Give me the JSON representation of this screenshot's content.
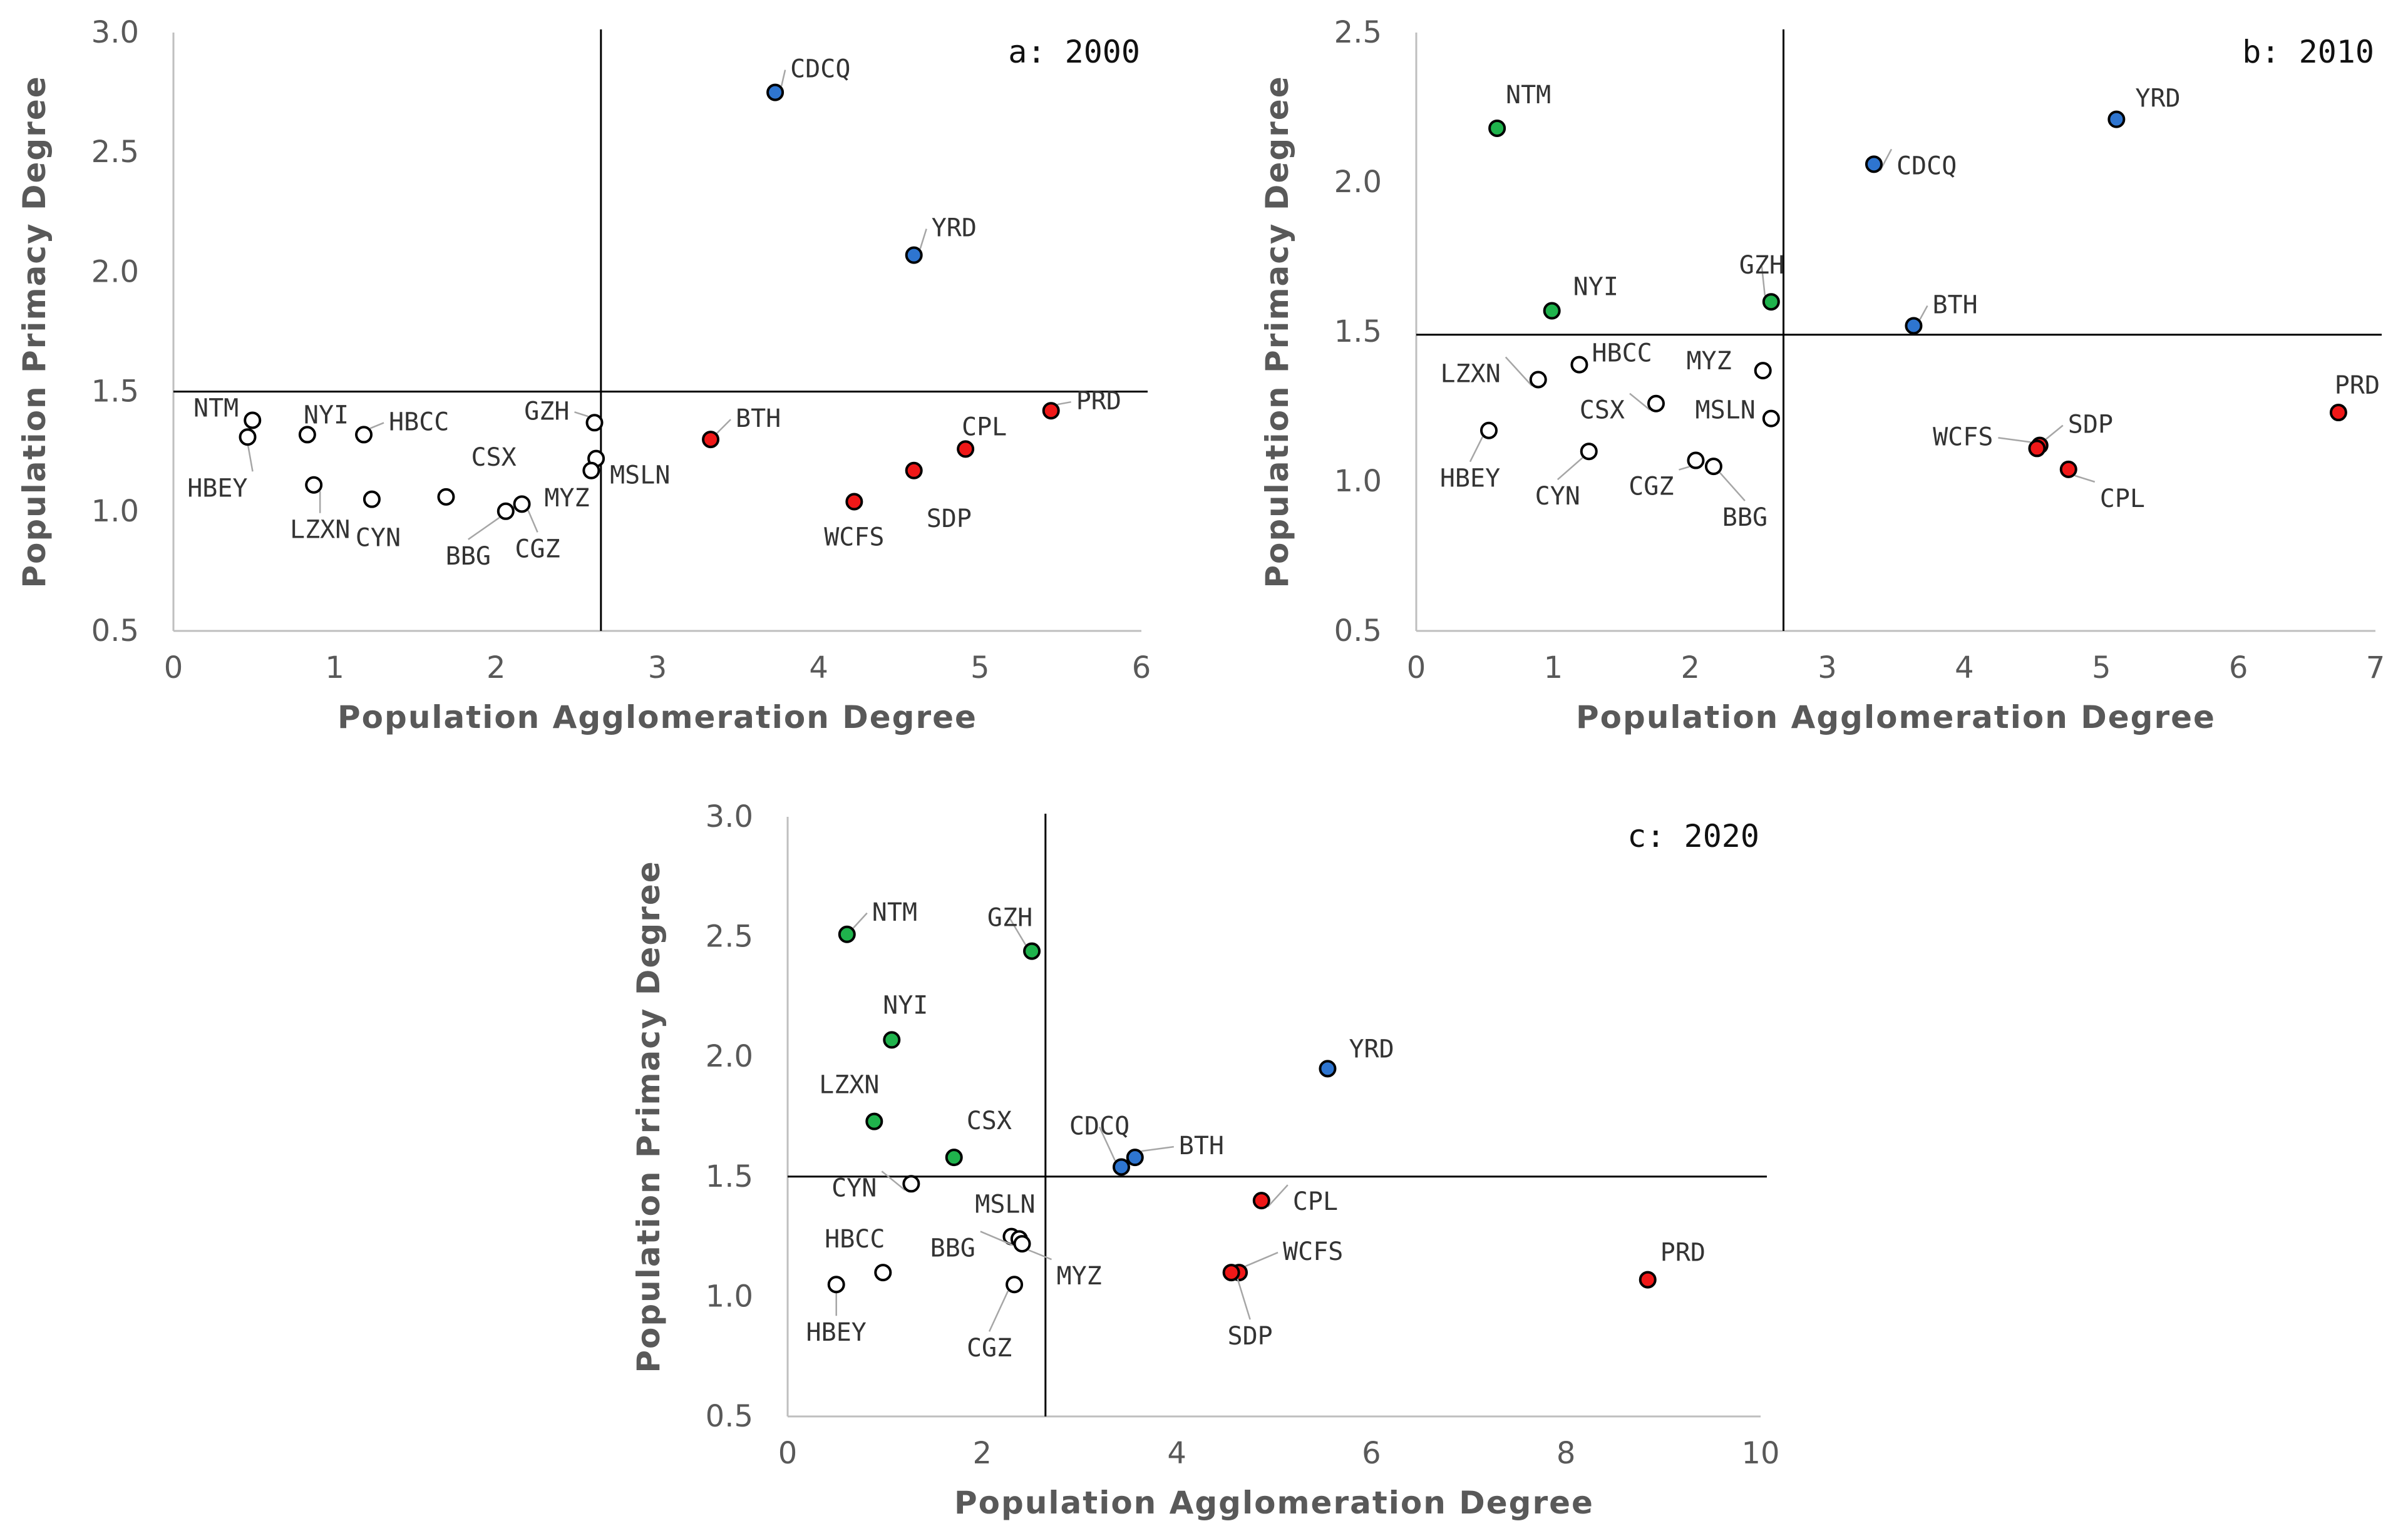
{
  "colors": {
    "blue": "#2E75D0",
    "red": "#F01818",
    "green": "#1FB34C",
    "white": "#FFFFFF",
    "axis": "#BFBFBF",
    "divider": "#000000",
    "leader": "#A6A6A6"
  },
  "chart_data": [
    {
      "type": "scatter",
      "title": "a: 2000",
      "xlabel": "Population Agglomeration Degree",
      "ylabel": "Population Primacy Degree",
      "xlim": [
        0,
        6
      ],
      "ylim": [
        0.5,
        3.0
      ],
      "xticks": [
        "0",
        "1",
        "2",
        "3",
        "4",
        "5",
        "6"
      ],
      "yticks": [
        "0.5",
        "1.0",
        "1.5",
        "2.0",
        "2.5",
        "3.0"
      ],
      "divider_x": 2.65,
      "divider_y": 1.5,
      "points": [
        {
          "name": "CDCQ",
          "x": 3.73,
          "y": 2.75,
          "color": "blue"
        },
        {
          "name": "YRD",
          "x": 4.59,
          "y": 2.07,
          "color": "blue"
        },
        {
          "name": "NTM",
          "x": 0.49,
          "y": 1.38,
          "color": "white"
        },
        {
          "name": "HBEY",
          "x": 0.46,
          "y": 1.31,
          "color": "white"
        },
        {
          "name": "NYI",
          "x": 0.83,
          "y": 1.32,
          "color": "white"
        },
        {
          "name": "HBCC",
          "x": 1.18,
          "y": 1.32,
          "color": "white"
        },
        {
          "name": "LZXN",
          "x": 0.87,
          "y": 1.11,
          "color": "white"
        },
        {
          "name": "CYN",
          "x": 1.23,
          "y": 1.05,
          "color": "white"
        },
        {
          "name": "CSX",
          "x": 1.69,
          "y": 1.06,
          "color": "white"
        },
        {
          "name": "BBG",
          "x": 2.06,
          "y": 1.0,
          "color": "white"
        },
        {
          "name": "CGZ",
          "x": 2.16,
          "y": 1.03,
          "color": "white"
        },
        {
          "name": "GZH",
          "x": 2.61,
          "y": 1.37,
          "color": "white"
        },
        {
          "name": "MSLN",
          "x": 2.62,
          "y": 1.22,
          "color": "white"
        },
        {
          "name": "MYZ",
          "x": 2.59,
          "y": 1.17,
          "color": "white"
        },
        {
          "name": "BTH",
          "x": 3.33,
          "y": 1.3,
          "color": "red"
        },
        {
          "name": "CPL",
          "x": 4.91,
          "y": 1.26,
          "color": "red"
        },
        {
          "name": "PRD",
          "x": 5.44,
          "y": 1.42,
          "color": "red"
        },
        {
          "name": "SDP",
          "x": 4.59,
          "y": 1.17,
          "color": "red"
        },
        {
          "name": "WCFS",
          "x": 4.22,
          "y": 1.04,
          "color": "red"
        }
      ]
    },
    {
      "type": "scatter",
      "title": "b: 2010",
      "xlabel": "Population Agglomeration Degree",
      "ylabel": "Population Primacy Degree",
      "xlim": [
        0,
        7
      ],
      "ylim": [
        0.5,
        2.5
      ],
      "xticks": [
        "0",
        "1",
        "2",
        "3",
        "4",
        "5",
        "6",
        "7"
      ],
      "yticks": [
        "0.5",
        "1.0",
        "1.5",
        "2.0",
        "2.5"
      ],
      "divider_x": 2.68,
      "divider_y": 1.49,
      "points": [
        {
          "name": "NTM",
          "x": 0.59,
          "y": 2.18,
          "color": "green"
        },
        {
          "name": "YRD",
          "x": 5.11,
          "y": 2.21,
          "color": "blue"
        },
        {
          "name": "CDCQ",
          "x": 3.34,
          "y": 2.06,
          "color": "blue"
        },
        {
          "name": "NYI",
          "x": 0.99,
          "y": 1.57,
          "color": "green"
        },
        {
          "name": "GZH",
          "x": 2.59,
          "y": 1.6,
          "color": "green"
        },
        {
          "name": "BTH",
          "x": 3.63,
          "y": 1.52,
          "color": "blue"
        },
        {
          "name": "LZXN",
          "x": 0.89,
          "y": 1.34,
          "color": "white"
        },
        {
          "name": "HBCC",
          "x": 1.19,
          "y": 1.39,
          "color": "white"
        },
        {
          "name": "MYZ",
          "x": 2.53,
          "y": 1.37,
          "color": "white"
        },
        {
          "name": "CSX",
          "x": 1.75,
          "y": 1.26,
          "color": "white"
        },
        {
          "name": "MSLN",
          "x": 2.59,
          "y": 1.21,
          "color": "white"
        },
        {
          "name": "HBEY",
          "x": 0.53,
          "y": 1.17,
          "color": "white"
        },
        {
          "name": "CYN",
          "x": 1.26,
          "y": 1.1,
          "color": "white"
        },
        {
          "name": "CGZ",
          "x": 2.04,
          "y": 1.07,
          "color": "white"
        },
        {
          "name": "BBG",
          "x": 2.17,
          "y": 1.05,
          "color": "white"
        },
        {
          "name": "PRD",
          "x": 6.73,
          "y": 1.23,
          "color": "red"
        },
        {
          "name": "SDP",
          "x": 4.55,
          "y": 1.12,
          "color": "red"
        },
        {
          "name": "WCFS",
          "x": 4.53,
          "y": 1.11,
          "color": "red"
        },
        {
          "name": "CPL",
          "x": 4.76,
          "y": 1.04,
          "color": "red"
        }
      ]
    },
    {
      "type": "scatter",
      "title": "c: 2020",
      "xlabel": "Population Agglomeration Degree",
      "ylabel": "Population Primacy Degree",
      "xlim": [
        0,
        10
      ],
      "ylim": [
        0.5,
        3.0
      ],
      "xticks": [
        "0",
        "2",
        "4",
        "6",
        "8",
        "10"
      ],
      "yticks": [
        "0.5",
        "1.0",
        "1.5",
        "2.0",
        "2.5",
        "3.0"
      ],
      "divider_x": 2.65,
      "divider_y": 1.5,
      "points": [
        {
          "name": "NTM",
          "x": 0.61,
          "y": 2.51,
          "color": "green"
        },
        {
          "name": "GZH",
          "x": 2.51,
          "y": 2.44,
          "color": "green"
        },
        {
          "name": "NYI",
          "x": 1.07,
          "y": 2.07,
          "color": "green"
        },
        {
          "name": "YRD",
          "x": 5.55,
          "y": 1.95,
          "color": "blue"
        },
        {
          "name": "LZXN",
          "x": 0.89,
          "y": 1.73,
          "color": "green"
        },
        {
          "name": "CSX",
          "x": 1.71,
          "y": 1.58,
          "color": "green"
        },
        {
          "name": "CDCQ",
          "x": 3.43,
          "y": 1.54,
          "color": "blue"
        },
        {
          "name": "BTH",
          "x": 3.57,
          "y": 1.58,
          "color": "blue"
        },
        {
          "name": "CYN",
          "x": 1.27,
          "y": 1.47,
          "color": "white"
        },
        {
          "name": "CPL",
          "x": 4.87,
          "y": 1.4,
          "color": "red"
        },
        {
          "name": "MSLN",
          "x": 2.3,
          "y": 1.25,
          "color": "white"
        },
        {
          "name": "BBG",
          "x": 2.38,
          "y": 1.24,
          "color": "white"
        },
        {
          "name": "MYZ",
          "x": 2.41,
          "y": 1.22,
          "color": "white"
        },
        {
          "name": "HBCC",
          "x": 0.98,
          "y": 1.1,
          "color": "white"
        },
        {
          "name": "HBEY",
          "x": 0.5,
          "y": 1.05,
          "color": "white"
        },
        {
          "name": "CGZ",
          "x": 2.33,
          "y": 1.05,
          "color": "white"
        },
        {
          "name": "WCFS",
          "x": 4.64,
          "y": 1.1,
          "color": "red"
        },
        {
          "name": "SDP",
          "x": 4.56,
          "y": 1.1,
          "color": "red"
        },
        {
          "name": "PRD",
          "x": 8.84,
          "y": 1.07,
          "color": "red"
        }
      ]
    }
  ]
}
